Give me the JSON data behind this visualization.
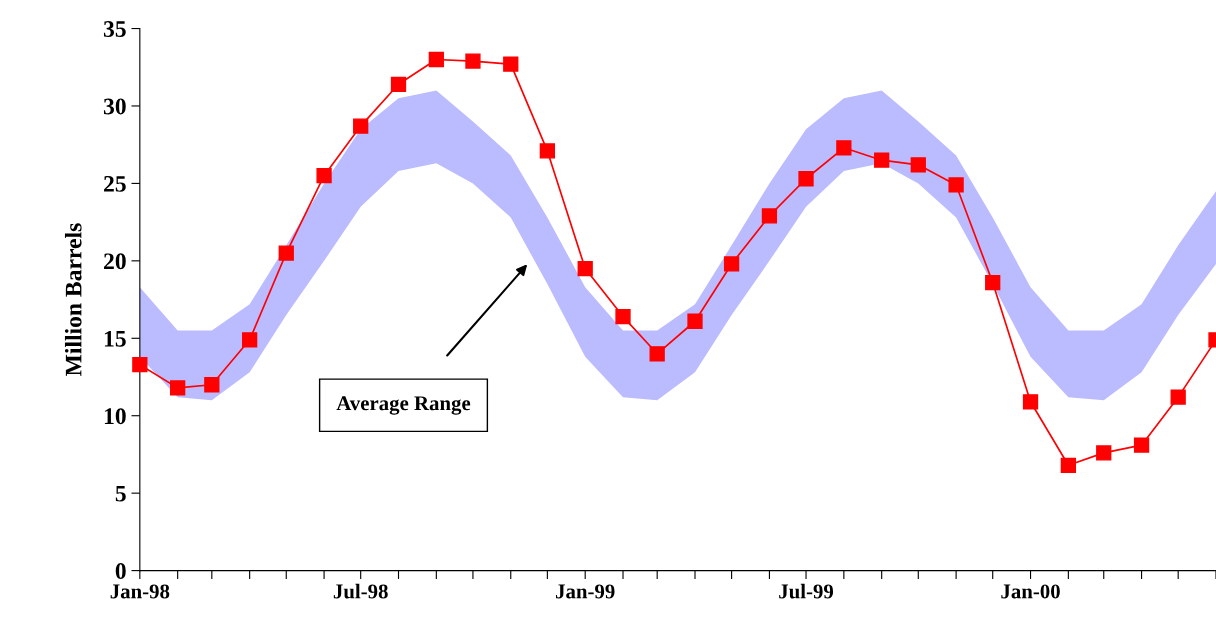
{
  "chart_data": {
    "type": "line",
    "ylabel": "Million Barrels",
    "x": [
      "1998-01",
      "1998-02",
      "1998-03",
      "1998-04",
      "1998-05",
      "1998-06",
      "1998-07",
      "1998-08",
      "1998-09",
      "1998-10",
      "1998-11",
      "1998-12",
      "1999-01",
      "1999-02",
      "1999-03",
      "1999-04",
      "1999-05",
      "1999-06",
      "1999-07",
      "1999-08",
      "1999-09",
      "1999-10",
      "1999-11",
      "1999-12",
      "2000-01",
      "2000-02",
      "2000-03",
      "2000-04",
      "2000-05",
      "2000-06"
    ],
    "series": [
      {
        "type": "area",
        "color": "#bbbbff",
        "values": [
          null,
          null,
          null,
          null,
          null,
          null,
          null,
          null,
          null,
          null,
          null,
          null,
          null,
          null,
          null,
          null,
          null,
          null,
          null,
          null,
          null,
          null,
          null,
          null,
          null,
          null,
          null,
          null,
          null,
          null
        ],
        "lower": [
          13.8,
          11.2,
          11.0,
          12.8,
          16.5,
          20.0,
          23.5,
          25.8,
          26.3,
          25.0,
          22.8,
          18.5,
          13.8,
          11.2,
          11.0,
          12.8,
          16.5,
          20.0,
          23.5,
          25.8,
          26.3,
          25.0,
          22.8,
          18.5,
          13.8,
          11.2,
          11.0,
          12.8,
          16.5,
          19.8
        ],
        "upper": [
          18.3,
          15.5,
          15.5,
          17.2,
          21.0,
          25.0,
          28.5,
          30.5,
          31.0,
          29.0,
          26.8,
          22.8,
          18.3,
          15.5,
          15.5,
          17.2,
          21.0,
          25.0,
          28.5,
          30.5,
          31.0,
          29.0,
          26.8,
          22.8,
          18.3,
          15.5,
          15.5,
          17.2,
          21.0,
          24.5
        ]
      },
      {
        "color": "#ff0000",
        "marker": "square",
        "line_style": "solid",
        "values": [
          13.3,
          11.8,
          12.0,
          14.9,
          20.5,
          25.5,
          28.7,
          31.4,
          33.0,
          32.9,
          32.7,
          27.1,
          19.5,
          16.4,
          14.0,
          16.1,
          19.8,
          22.9,
          25.3,
          27.3,
          26.5,
          26.2,
          24.9,
          18.6,
          10.9,
          6.8,
          7.6,
          8.1,
          11.2,
          14.9
        ]
      }
    ],
    "xlim": [
      "1998-01",
      "2000-06"
    ],
    "xticks": [
      {
        "value": "1998-01",
        "label": "Jan-98"
      },
      {
        "value": "1998-02",
        "label": null
      },
      {
        "value": "1998-03",
        "label": null
      },
      {
        "value": "1998-04",
        "label": null
      },
      {
        "value": "1998-05",
        "label": null
      },
      {
        "value": "1998-06",
        "label": null
      },
      {
        "value": "1998-07",
        "label": "Jul-98"
      },
      {
        "value": "1998-08",
        "label": null
      },
      {
        "value": "1998-09",
        "label": null
      },
      {
        "value": "1998-10",
        "label": null
      },
      {
        "value": "1998-11",
        "label": null
      },
      {
        "value": "1998-12",
        "label": null
      },
      {
        "value": "1999-01",
        "label": "Jan-99"
      },
      {
        "value": "1999-02",
        "label": null
      },
      {
        "value": "1999-03",
        "label": null
      },
      {
        "value": "1999-04",
        "label": null
      },
      {
        "value": "1999-05",
        "label": null
      },
      {
        "value": "1999-06",
        "label": null
      },
      {
        "value": "1999-07",
        "label": "Jul-99"
      },
      {
        "value": "1999-08",
        "label": null
      },
      {
        "value": "1999-09",
        "label": null
      },
      {
        "value": "1999-10",
        "label": null
      },
      {
        "value": "1999-11",
        "label": null
      },
      {
        "value": "1999-12",
        "label": null
      },
      {
        "value": "2000-01",
        "label": "Jan-00"
      },
      {
        "value": "2000-02",
        "label": null
      },
      {
        "value": "2000-03",
        "label": null
      },
      {
        "value": "2000-04",
        "label": null
      },
      {
        "value": "2000-05",
        "label": null
      },
      {
        "value": "2000-06",
        "label": null
      }
    ],
    "ylim": [
      0,
      35
    ],
    "yticks": [
      0,
      5,
      10,
      15,
      20,
      25,
      30,
      35
    ],
    "grid": false,
    "legend": false,
    "annotations": [
      "Average Range"
    ]
  }
}
